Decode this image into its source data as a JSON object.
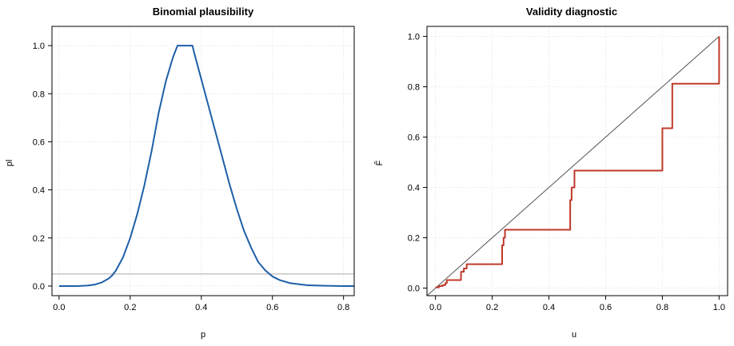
{
  "chart_data": [
    {
      "type": "line",
      "title": "Binomial plausibility",
      "xlabel": "p",
      "ylabel": "pl",
      "xlim": [
        -0.02,
        0.83
      ],
      "ylim": [
        -0.04,
        1.08
      ],
      "xticks": [
        "0.0",
        "0.2",
        "0.4",
        "0.6",
        "0.8"
      ],
      "yticks": [
        "0.0",
        "0.2",
        "0.4",
        "0.6",
        "0.8",
        "1.0"
      ],
      "grid": true,
      "series": [
        {
          "color": "#1f5fa8",
          "x": [
            0.0,
            0.05,
            0.08,
            0.1,
            0.12,
            0.14,
            0.15,
            0.16,
            0.18,
            0.2,
            0.22,
            0.24,
            0.26,
            0.28,
            0.3,
            0.32,
            0.333,
            0.34,
            0.36,
            0.375,
            0.38,
            0.4,
            0.42,
            0.44,
            0.46,
            0.48,
            0.5,
            0.52,
            0.54,
            0.56,
            0.58,
            0.6,
            0.62,
            0.65,
            0.7,
            0.75,
            0.8,
            0.83
          ],
          "y": [
            0.0,
            0.0,
            0.002,
            0.006,
            0.015,
            0.032,
            0.045,
            0.065,
            0.12,
            0.2,
            0.3,
            0.42,
            0.56,
            0.72,
            0.85,
            0.95,
            1.0,
            1.0,
            1.0,
            1.0,
            0.97,
            0.86,
            0.75,
            0.64,
            0.53,
            0.42,
            0.32,
            0.23,
            0.16,
            0.1,
            0.065,
            0.04,
            0.025,
            0.012,
            0.003,
            0.001,
            0.0,
            0.0
          ]
        }
      ],
      "hline": {
        "y": 0.05,
        "color": "#a8a8a8"
      }
    },
    {
      "type": "line",
      "title": "Validity diagnostic",
      "xlabel": "u",
      "ylabel": "F̂",
      "xlim": [
        -0.03,
        1.03
      ],
      "ylim": [
        -0.03,
        1.04
      ],
      "xticks": [
        "0.0",
        "0.2",
        "0.4",
        "0.6",
        "0.8",
        "1.0"
      ],
      "yticks": [
        "0.0",
        "0.2",
        "0.4",
        "0.6",
        "0.8",
        "1.0"
      ],
      "grid": true,
      "diagonal": {
        "from": [
          -0.03,
          -0.03
        ],
        "to": [
          1.0,
          1.0
        ],
        "color": "#555555"
      },
      "series": [
        {
          "color": "#c0392b",
          "step": true,
          "x": [
            0.0,
            0.012,
            0.025,
            0.035,
            0.04,
            0.09,
            0.1,
            0.11,
            0.235,
            0.24,
            0.245,
            0.475,
            0.48,
            0.49,
            0.8,
            0.805,
            0.835,
            1.0,
            1.0
          ],
          "y": [
            0.003,
            0.008,
            0.012,
            0.02,
            0.032,
            0.065,
            0.078,
            0.095,
            0.17,
            0.2,
            0.232,
            0.35,
            0.4,
            0.467,
            0.635,
            0.635,
            0.812,
            0.9,
            1.0
          ]
        }
      ]
    }
  ]
}
